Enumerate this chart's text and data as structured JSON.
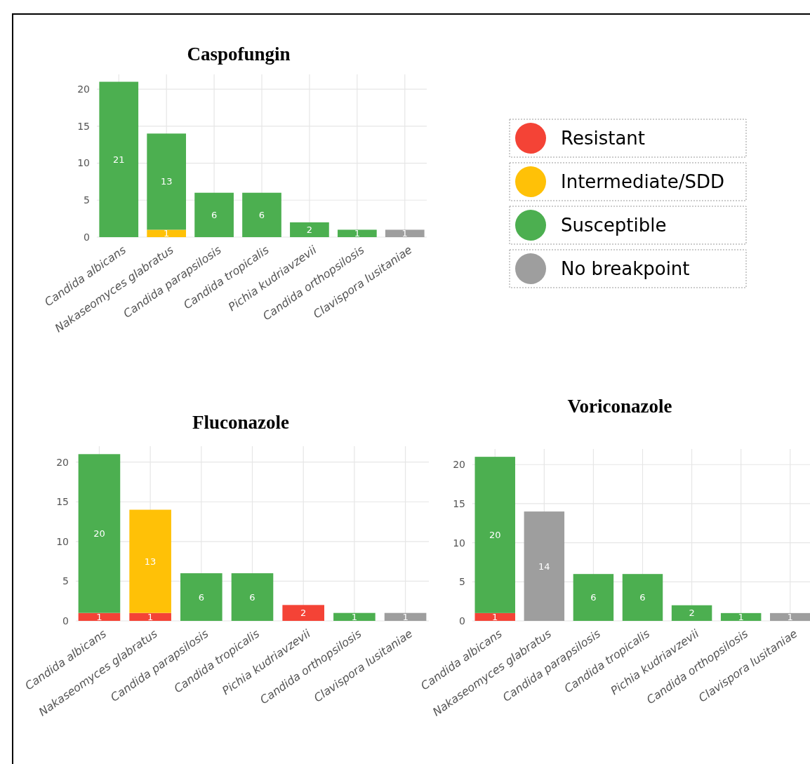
{
  "chart_data": [
    {
      "type": "bar",
      "title": "Caspofungin",
      "stacked": true,
      "grid": true,
      "data_labels": true,
      "legend": "right",
      "categories": [
        "Candida albicans",
        "Nakaseomyces glabratus",
        "Candida parapsilosis",
        "Candida tropicalis",
        "Pichia kudriavzevii",
        "Candida orthopsilosis",
        "Clavispora lusitaniae"
      ],
      "ylim": [
        0,
        22
      ],
      "yticks": [
        0,
        5,
        10,
        15,
        20
      ],
      "series": [
        {
          "name": "Resistant",
          "color": "#f44336",
          "values": [
            null,
            null,
            null,
            null,
            null,
            null,
            null
          ]
        },
        {
          "name": "Intermediate/SDD",
          "color": "#ffc107",
          "values": [
            null,
            1,
            null,
            null,
            null,
            null,
            null
          ]
        },
        {
          "name": "Susceptible",
          "color": "#4caf50",
          "values": [
            21,
            13,
            6,
            6,
            2,
            1,
            null
          ]
        },
        {
          "name": "No breakpoint",
          "color": "#9e9e9e",
          "values": [
            null,
            null,
            null,
            null,
            null,
            null,
            1
          ]
        }
      ]
    },
    {
      "type": "bar",
      "title": "Fluconazole",
      "stacked": true,
      "grid": true,
      "data_labels": true,
      "categories": [
        "Candida albicans",
        "Nakaseomyces glabratus",
        "Candida parapsilosis",
        "Candida tropicalis",
        "Pichia kudriavzevii",
        "Candida orthopsilosis",
        "Clavispora lusitaniae"
      ],
      "ylim": [
        0,
        22
      ],
      "yticks": [
        0,
        5,
        10,
        15,
        20
      ],
      "series": [
        {
          "color": "#f44336",
          "values": [
            1,
            1,
            null,
            null,
            2,
            null,
            null
          ]
        },
        {
          "color": "#ffc107",
          "values": [
            null,
            13,
            null,
            null,
            null,
            null,
            null
          ]
        },
        {
          "color": "#4caf50",
          "values": [
            20,
            null,
            6,
            6,
            null,
            1,
            null
          ]
        },
        {
          "color": "#9e9e9e",
          "values": [
            null,
            null,
            null,
            null,
            null,
            null,
            1
          ]
        }
      ]
    },
    {
      "type": "bar",
      "title": "Voriconazole",
      "stacked": true,
      "grid": true,
      "data_labels": true,
      "categories": [
        "Candida albicans",
        "Nakaseomyces glabratus",
        "Candida parapsilosis",
        "Candida tropicalis",
        "Pichia kudriavzevii",
        "Candida orthopsilosis",
        "Clavispora lusitaniae"
      ],
      "ylim": [
        0,
        22
      ],
      "yticks": [
        0,
        5,
        10,
        15,
        20
      ],
      "series": [
        {
          "color": "#f44336",
          "values": [
            1,
            null,
            null,
            null,
            null,
            null,
            null
          ]
        },
        {
          "color": "#4caf50",
          "values": [
            20,
            null,
            6,
            6,
            2,
            1,
            null
          ]
        },
        {
          "color": "#9e9e9e",
          "values": [
            null,
            14,
            null,
            null,
            null,
            null,
            1
          ]
        }
      ]
    }
  ]
}
